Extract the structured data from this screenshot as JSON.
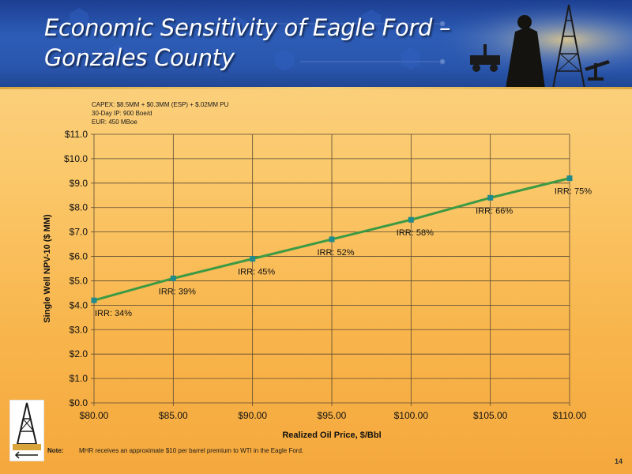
{
  "slide": {
    "title_line1": "Economic Sensitivity of Eagle Ford –",
    "title_line2": "Gonzales County",
    "page_number": "14",
    "footnote_label": "Note:",
    "footnote_text": "MHR receives an approximate $10 per barrel premium to WTI in the Eagle Ford."
  },
  "chart_notes": [
    "CAPEX: $8.5MM + $0.3MM (ESP) + $.02MM PU",
    "30-Day IP: 900 Boe/d",
    "EUR: 450 MBoe"
  ],
  "colors": {
    "line": "#3d9a44",
    "marker": "#1f8b8d",
    "grid": "#5a4a34"
  },
  "chart_data": {
    "type": "line",
    "xlabel": "Realized Oil Price, $/Bbl",
    "ylabel": "Single Well NPV-10 ($ MM)",
    "xlim": [
      80,
      110
    ],
    "ylim": [
      0,
      11
    ],
    "x_ticks": [
      "$80.00",
      "$85.00",
      "$90.00",
      "$95.00",
      "$100.00",
      "$105.00",
      "$110.00"
    ],
    "y_ticks": [
      "$0.0",
      "$1.0",
      "$2.0",
      "$3.0",
      "$4.0",
      "$5.0",
      "$6.0",
      "$7.0",
      "$8.0",
      "$9.0",
      "$10.0",
      "$11.0"
    ],
    "grid": true,
    "series": [
      {
        "x": [
          80,
          85,
          90,
          95,
          100,
          105,
          110
        ],
        "values": [
          4.2,
          5.1,
          5.9,
          6.7,
          7.5,
          8.4,
          9.2
        ],
        "labels": [
          "IRR: 34%",
          "IRR: 39%",
          "IRR: 45%",
          "IRR: 52%",
          "IRR: 58%",
          "IRR: 66%",
          "IRR: 75%"
        ]
      }
    ]
  }
}
